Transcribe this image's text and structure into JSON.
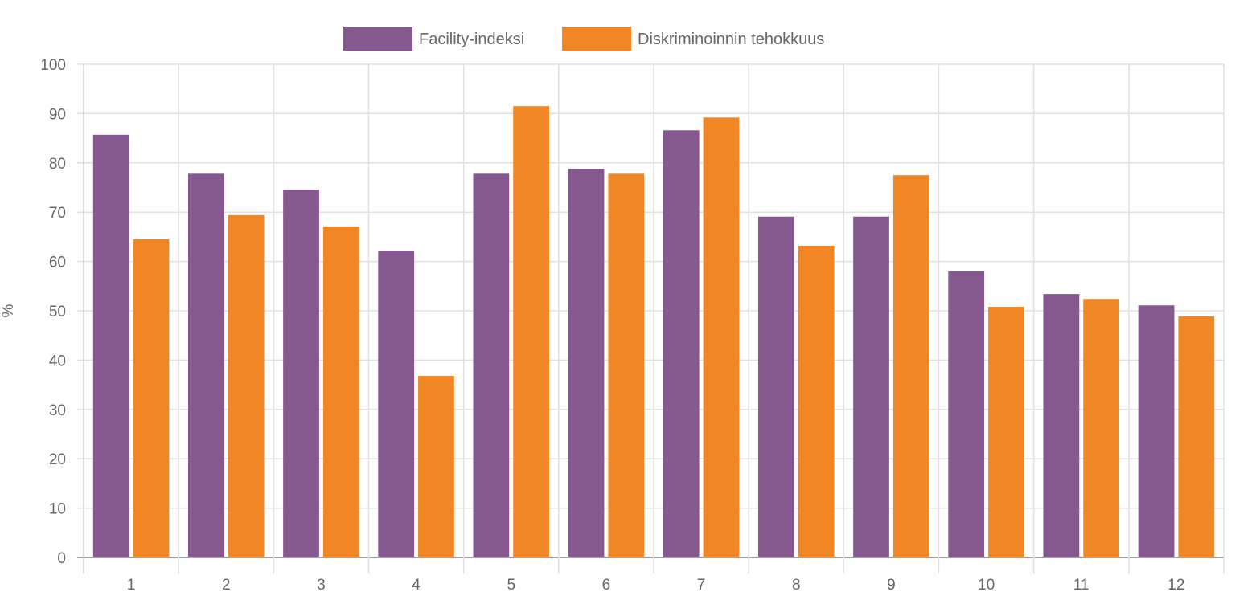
{
  "chart_data": {
    "type": "bar",
    "title": "",
    "xlabel": "",
    "ylabel": "%",
    "ylim": [
      0,
      100
    ],
    "ytick_step": 10,
    "yticks": [
      "0",
      "10",
      "20",
      "30",
      "40",
      "50",
      "60",
      "70",
      "80",
      "90",
      "100"
    ],
    "grid": true,
    "legend_position": "top-center",
    "categories": [
      "1",
      "2",
      "3",
      "4",
      "5",
      "6",
      "7",
      "8",
      "9",
      "10",
      "11",
      "12"
    ],
    "series": [
      {
        "name": "Facility-indeksi",
        "color": "#85588f",
        "values": [
          85.7,
          77.8,
          74.6,
          62.2,
          77.8,
          78.8,
          86.6,
          69.1,
          69.1,
          58.0,
          53.4,
          51.1
        ]
      },
      {
        "name": "Diskriminoinnin tehokkuus",
        "color": "#f08624",
        "values": [
          64.5,
          69.4,
          67.1,
          36.8,
          91.5,
          77.8,
          89.2,
          63.2,
          77.5,
          50.8,
          52.4,
          48.9
        ]
      }
    ]
  }
}
